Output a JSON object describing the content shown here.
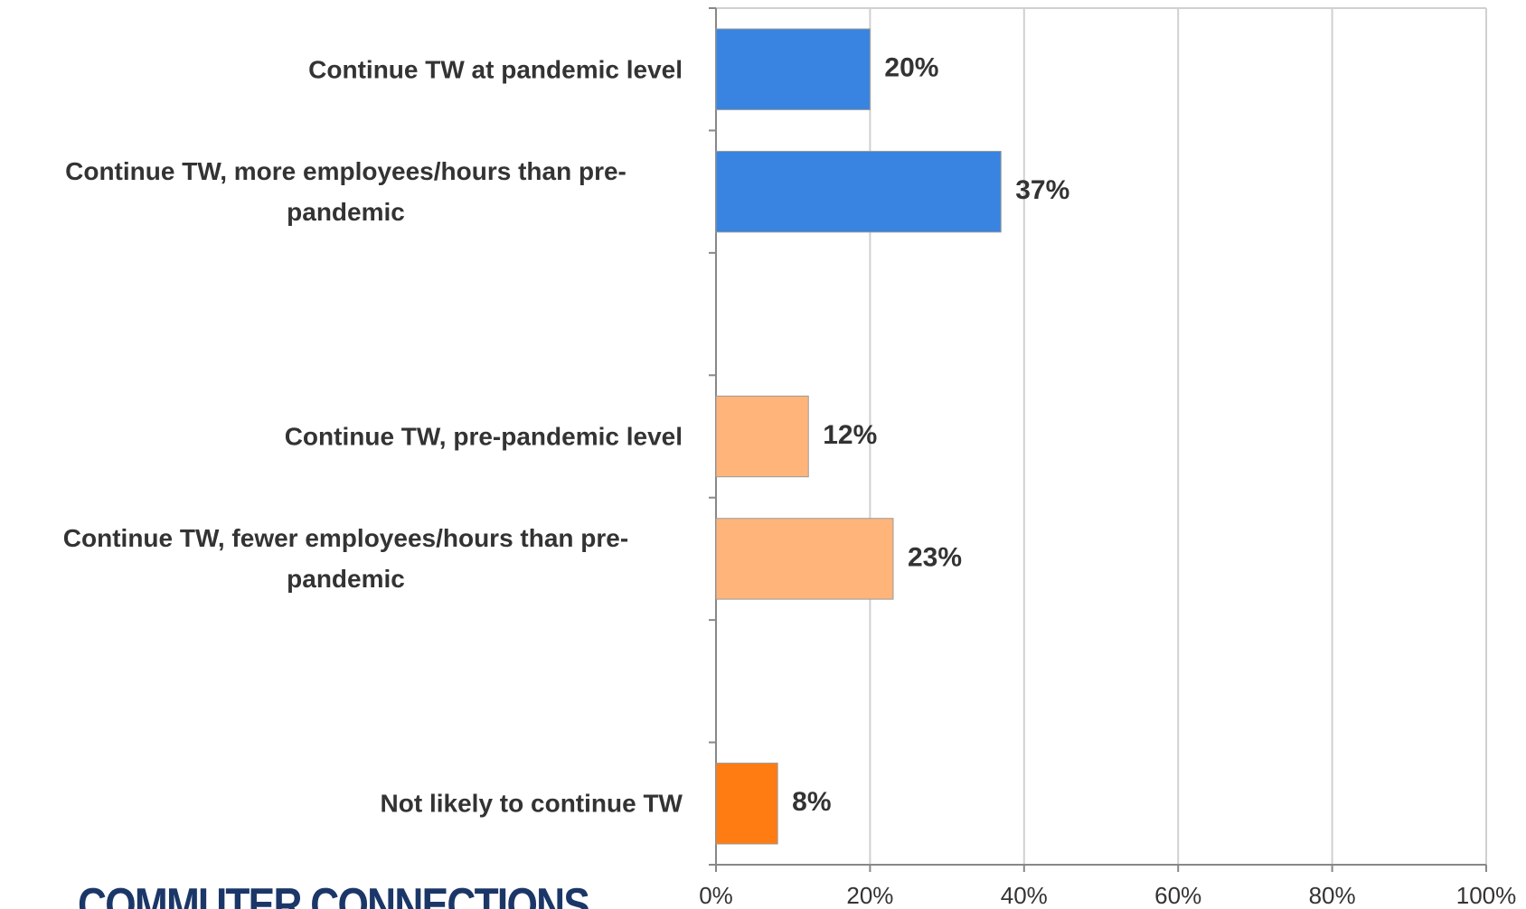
{
  "chart_data": {
    "type": "bar",
    "orientation": "horizontal",
    "categories": [
      "Continue TW at pandemic level",
      "Continue TW, more employees/hours than pre-pandemic",
      null,
      "Continue TW, pre-pandemic level",
      "Continue TW, fewer employees/hours than pre-pandemic",
      null,
      "Not likely to continue TW"
    ],
    "values": [
      20,
      37,
      null,
      12,
      23,
      null,
      8
    ],
    "value_labels": [
      "20%",
      "37%",
      null,
      "12%",
      "23%",
      null,
      "8%"
    ],
    "colors": [
      "#3884e0",
      "#3884e0",
      null,
      "#ffb57a",
      "#ffb57a",
      null,
      "#ff7c12"
    ],
    "xlim": [
      0,
      100
    ],
    "xticks": [
      {
        "value": 0,
        "label": "0%"
      },
      {
        "value": 20,
        "label": "20%"
      },
      {
        "value": 40,
        "label": "40%"
      },
      {
        "value": 60,
        "label": "60%"
      },
      {
        "value": 80,
        "label": "80%"
      },
      {
        "value": 100,
        "label": "100%"
      }
    ],
    "grid": true
  },
  "logo": "COMMUTER CONNECTIONS"
}
